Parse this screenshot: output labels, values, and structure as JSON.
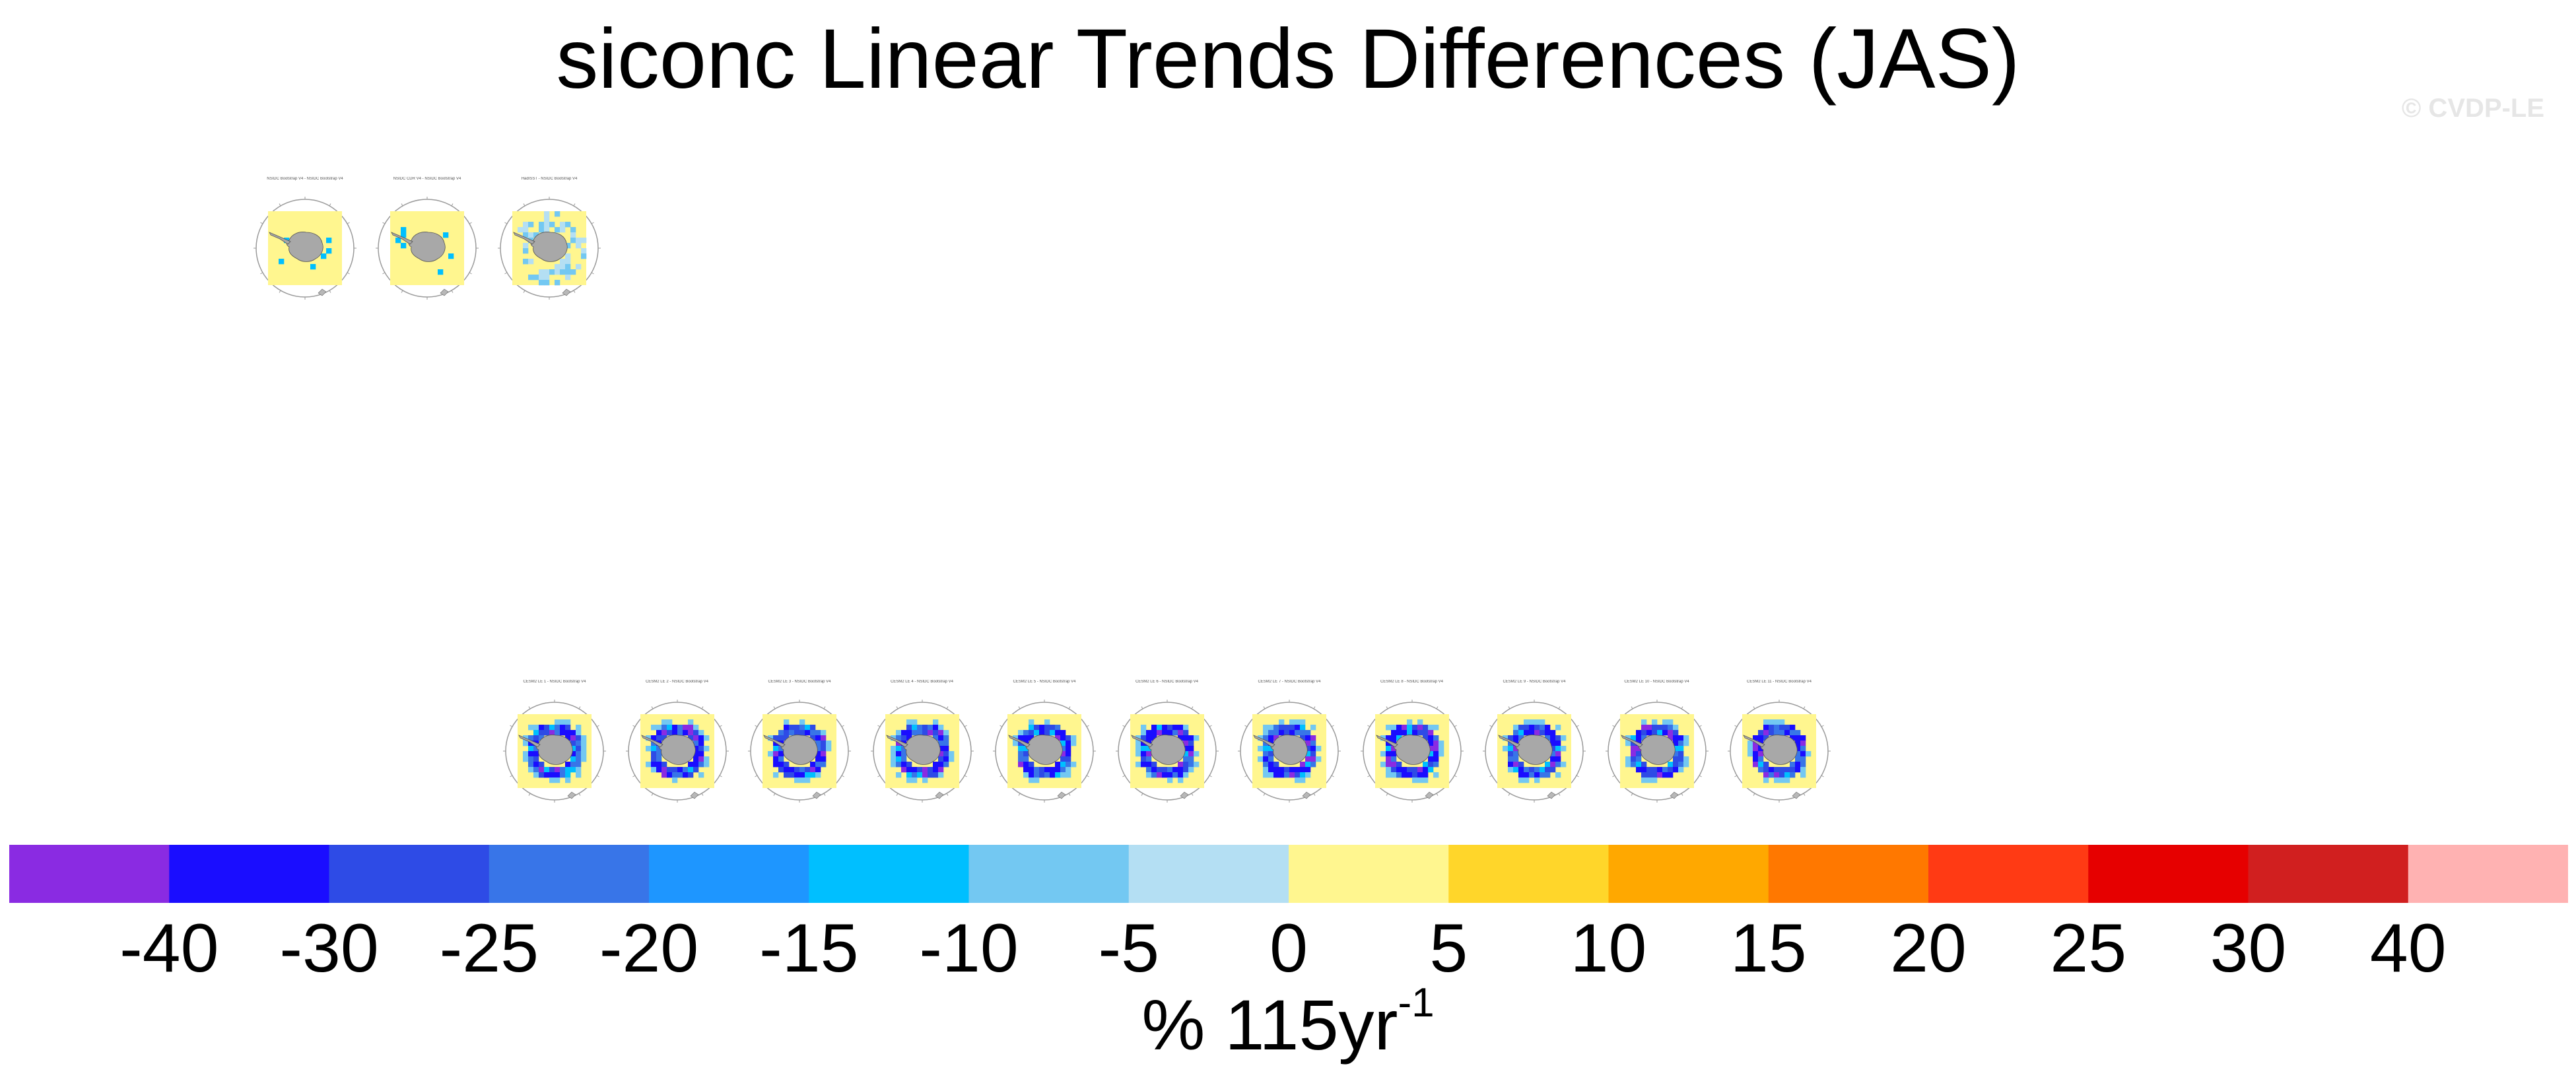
{
  "title": "siconc Linear Trends Differences (JAS)",
  "watermark": "© CVDP-LE",
  "colorbar": {
    "colors": [
      "#8a2be2",
      "#1a0dff",
      "#2e4be6",
      "#3875e8",
      "#1e96ff",
      "#00bfff",
      "#73c8f2",
      "#b4dff3",
      "#fff68f",
      "#ffd62a",
      "#ffa800",
      "#ff7800",
      "#ff3a14",
      "#e60000",
      "#d11f1f",
      "#ffb2b2"
    ],
    "tick_labels": [
      "-40",
      "-30",
      "-25",
      "-20",
      "-15",
      "-10",
      "-5",
      "0",
      "5",
      "10",
      "15",
      "20",
      "25",
      "30",
      "40"
    ],
    "unit_base": "% 115yr",
    "unit_exp": "-1"
  },
  "panels_top": [
    {
      "title": "NSIDC Bootstrap V4 - NSIDC Bootstrap V4",
      "pattern": "low"
    },
    {
      "title": "NSIDC CDR V4 - NSIDC Bootstrap V4",
      "pattern": "low"
    },
    {
      "title": "HadISST - NSIDC Bootstrap V4",
      "pattern": "mid"
    }
  ],
  "panels_bottom": [
    {
      "title": "CESM2 LE 1 - NSIDC Bootstrap V4",
      "pattern": "ring"
    },
    {
      "title": "CESM2 LE 2 - NSIDC Bootstrap V4",
      "pattern": "ring"
    },
    {
      "title": "CESM2 LE 3 - NSIDC Bootstrap V4",
      "pattern": "ring"
    },
    {
      "title": "CESM2 LE 4 - NSIDC Bootstrap V4",
      "pattern": "ring"
    },
    {
      "title": "CESM2 LE 5 - NSIDC Bootstrap V4",
      "pattern": "ring"
    },
    {
      "title": "CESM2 LE 6 - NSIDC Bootstrap V4",
      "pattern": "ring"
    },
    {
      "title": "CESM2 LE 7 - NSIDC Bootstrap V4",
      "pattern": "ring"
    },
    {
      "title": "CESM2 LE 8 - NSIDC Bootstrap V4",
      "pattern": "ring"
    },
    {
      "title": "CESM2 LE 9 - NSIDC Bootstrap V4",
      "pattern": "ring"
    },
    {
      "title": "CESM2 LE 10 - NSIDC Bootstrap V4",
      "pattern": "ring"
    },
    {
      "title": "CESM2 LE 11 - NSIDC Bootstrap V4",
      "pattern": "ring"
    }
  ]
}
